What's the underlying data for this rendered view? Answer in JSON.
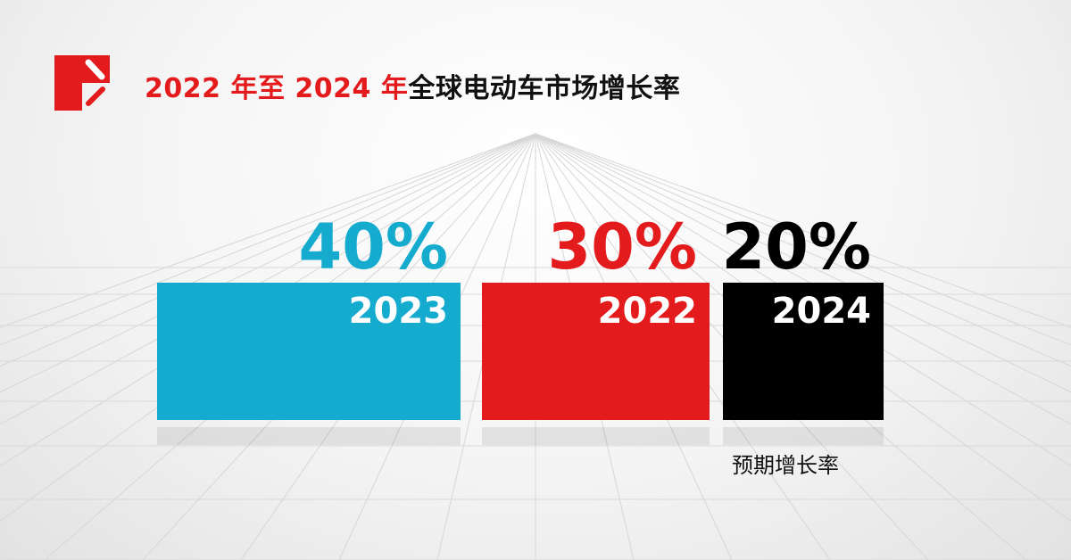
{
  "title": {
    "highlight": "2022 年至 2024 年",
    "rest": "全球电动车市场增长率"
  },
  "colors": {
    "brand_red": "#e31b1c",
    "cyan": "#14abcf",
    "black": "#000000"
  },
  "chart_data": {
    "type": "bar",
    "title": "2022 年至 2024 年全球电动车市场增长率",
    "categories": [
      "2023",
      "2022",
      "2024"
    ],
    "values": [
      40,
      30,
      20
    ],
    "value_labels": [
      "40%",
      "30%",
      "20%"
    ],
    "bar_colors": [
      "#14abcf",
      "#e31b1c",
      "#000000"
    ],
    "annotations": [
      {
        "category": "2024",
        "text": "预期增长率"
      }
    ],
    "unit": "%",
    "grid": false
  }
}
